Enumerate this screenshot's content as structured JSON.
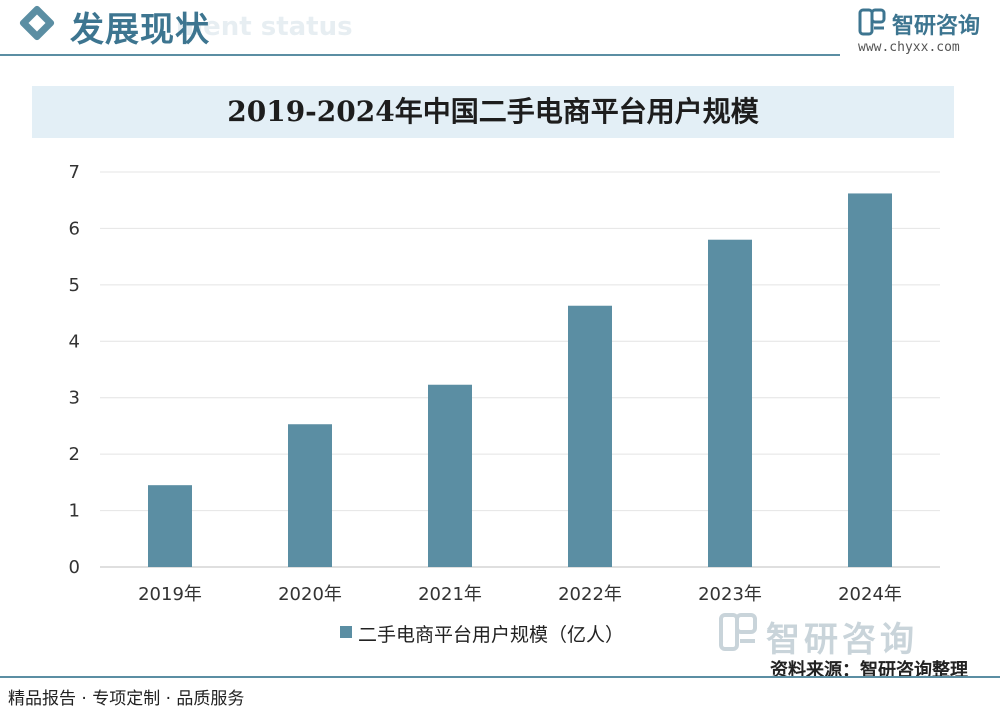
{
  "header": {
    "section_title": "发展现状",
    "section_subtitle": "ment status",
    "brand_name": "智研咨询",
    "brand_url": "www.chyxx.com"
  },
  "chart_data": {
    "type": "bar",
    "title": "2019-2024年中国二手电商平台用户规模",
    "categories": [
      "2019年",
      "2020年",
      "2021年",
      "2022年",
      "2023年",
      "2024年"
    ],
    "series": [
      {
        "name": "二手电商平台用户规模（亿人）",
        "values": [
          1.45,
          2.53,
          3.23,
          4.63,
          5.8,
          6.62
        ]
      }
    ],
    "ylim": [
      0,
      7
    ],
    "yticks": [
      "0",
      "1",
      "2",
      "3",
      "4",
      "5",
      "6",
      "7"
    ],
    "grid": true,
    "legend": "bottom",
    "bar_color": "#5b8ea3"
  },
  "watermark": {
    "brand_name": "智研咨询"
  },
  "source": "资料来源：智研咨询整理",
  "footer": "精品报告 · 专项定制 · 品质服务"
}
